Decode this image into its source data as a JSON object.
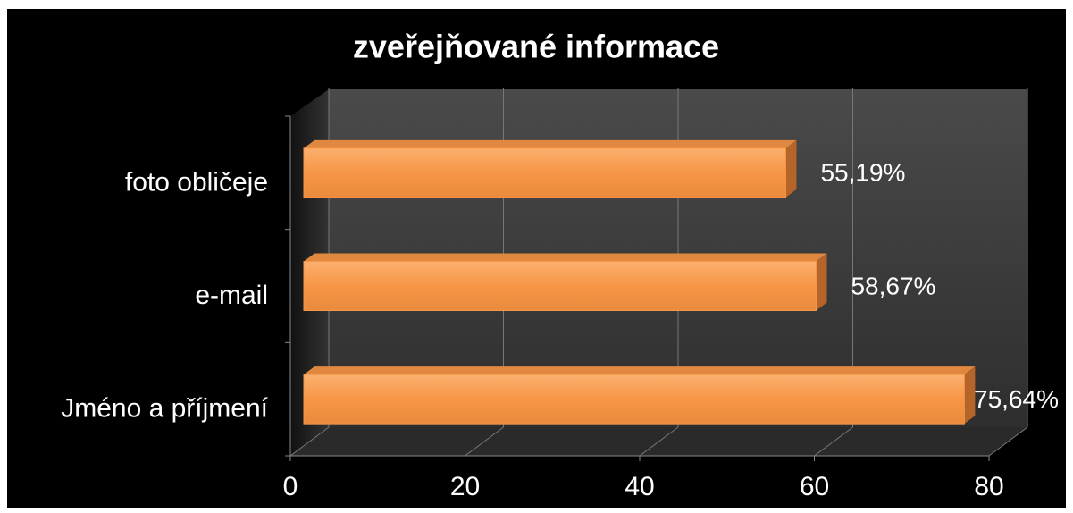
{
  "chart_data": {
    "type": "bar",
    "orientation": "horizontal",
    "title": "zveřejňované informace",
    "categories": [
      "foto obličeje",
      "e-mail",
      "Jméno a příjmení"
    ],
    "values": [
      55.19,
      58.67,
      75.64
    ],
    "value_labels": [
      "55,19%",
      "58,67%",
      "75,64%"
    ],
    "color": "#f79646",
    "xlim": [
      0,
      80
    ],
    "xticks": [
      0,
      20,
      40,
      60,
      80
    ],
    "grid": true
  }
}
